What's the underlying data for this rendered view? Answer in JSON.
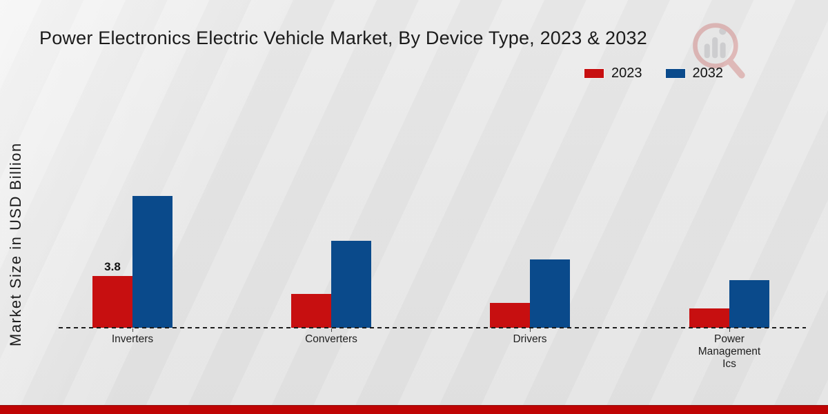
{
  "chart_data": {
    "type": "bar",
    "title": "Power Electronics Electric Vehicle Market, By Device Type, 2023 & 2032",
    "ylabel": "Market Size in USD Billion",
    "categories": [
      "Inverters",
      "Converters",
      "Drivers",
      "Power Management Ics"
    ],
    "series": [
      {
        "name": "2023",
        "color": "#c70f10",
        "values": [
          3.8,
          2.5,
          1.8,
          1.4
        ]
      },
      {
        "name": "2032",
        "color": "#0a4a8b",
        "values": [
          9.7,
          6.4,
          5.0,
          3.5
        ]
      }
    ],
    "ylim": [
      0,
      10.5
    ],
    "grid": false,
    "legend_position": "top-right",
    "baseline_style": "dashed",
    "data_labels": [
      {
        "series": "2023",
        "category": "Inverters",
        "text": "3.8"
      }
    ]
  },
  "watermark": {
    "name": "market-research-logo"
  },
  "footer": {
    "accent_color": "#bf0404"
  }
}
